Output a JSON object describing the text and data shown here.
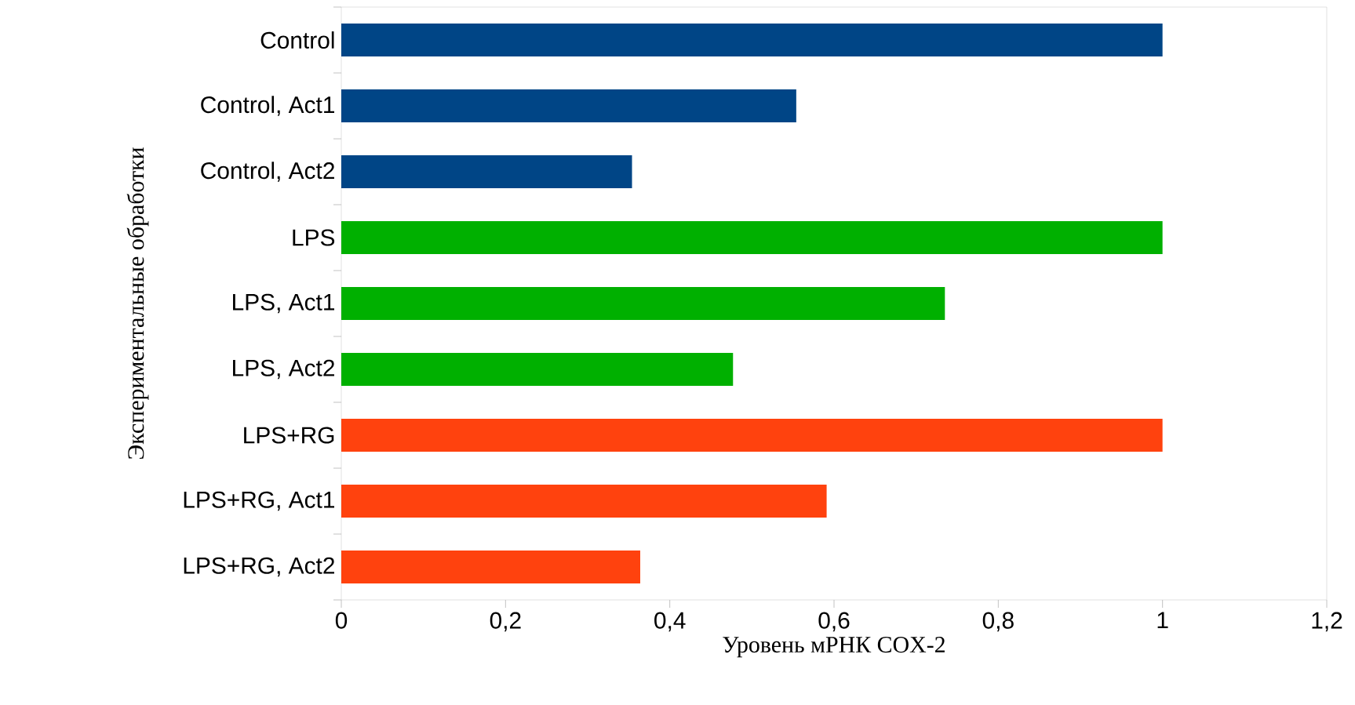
{
  "chart_data": {
    "type": "bar",
    "orientation": "horizontal",
    "xlabel": "Уровень мРНК COX-2",
    "ylabel": "Экспериментальные обработки",
    "categories": [
      "Control",
      "Control, Act1",
      "Control, Act2",
      "LPS",
      "LPS, Act1",
      "LPS, Act2",
      "LPS+RG",
      "LPS+RG, Act1",
      "LPS+RG, Act2"
    ],
    "values": [
      1,
      0.554,
      0.354,
      1,
      0.735,
      0.477,
      1,
      0.591,
      0.364
    ],
    "colors": [
      "#004586",
      "#004586",
      "#004586",
      "#00b000",
      "#00b000",
      "#00b000",
      "#ff420e",
      "#ff420e",
      "#ff420e"
    ],
    "xlim": [
      0,
      1.2
    ],
    "xticks": [
      0,
      {
        "value": 0.2,
        "label": "0,2"
      },
      {
        "value": 0.4,
        "label": "0,4"
      },
      {
        "value": 0.6,
        "label": "0,6"
      },
      {
        "value": 0.8,
        "label": "0,8"
      },
      1,
      {
        "value": 1.2,
        "label": "1,2"
      }
    ]
  }
}
